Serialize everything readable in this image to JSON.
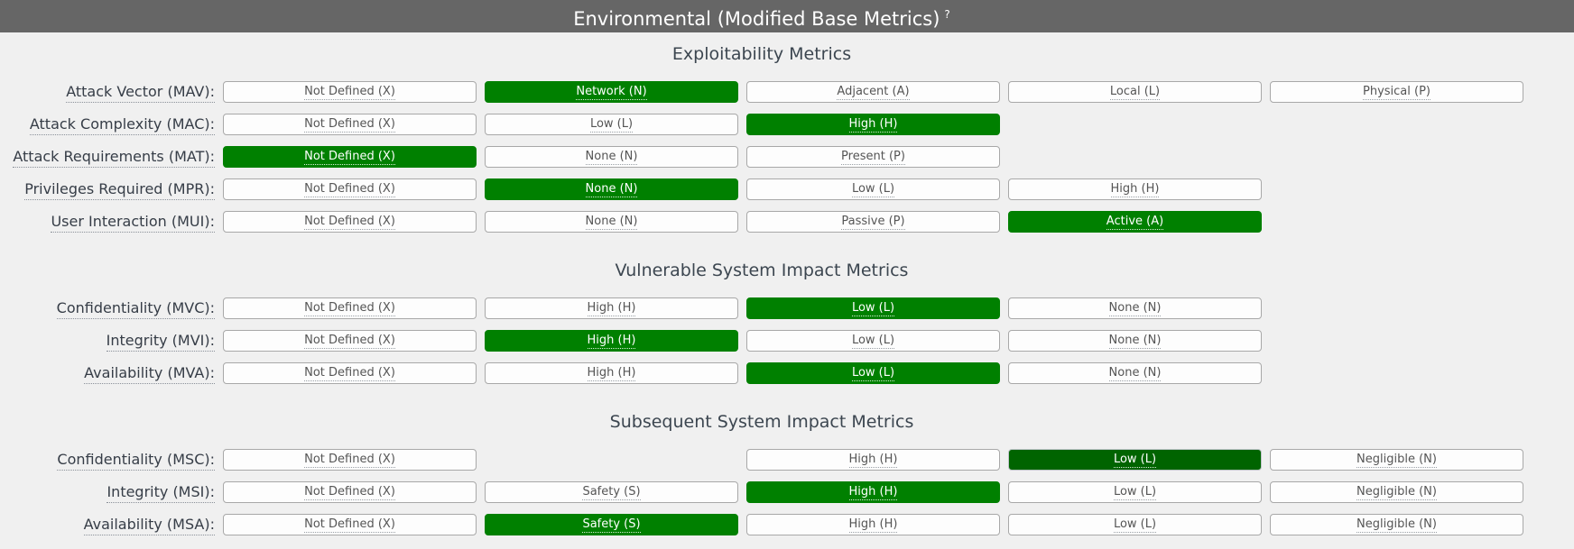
{
  "header": {
    "title": "Environmental (Modified Base Metrics)",
    "help": "?"
  },
  "colors": {
    "header_bg": "#666666",
    "header_text": "#ffffff",
    "page_bg": "#f0f0f0",
    "selected_bg": "#008000",
    "selected_active_bg": "#006400",
    "option_bg": "#fdfdfd",
    "option_border": "#a8a8a8",
    "option_text": "#555555",
    "heading_text": "#3c4650",
    "label_text": "#363d47"
  },
  "sections": [
    {
      "title": "Exploitability Metrics",
      "rows": [
        {
          "label": "Attack Vector (MAV):",
          "abbr": "MAV",
          "options": [
            {
              "text": "Not Defined (X)",
              "value": "X",
              "col": 1,
              "state": "default"
            },
            {
              "text": "Network (N)",
              "value": "N",
              "col": 2,
              "state": "selected"
            },
            {
              "text": "Adjacent (A)",
              "value": "A",
              "col": 3,
              "state": "default"
            },
            {
              "text": "Local (L)",
              "value": "L",
              "col": 4,
              "state": "default"
            },
            {
              "text": "Physical (P)",
              "value": "P",
              "col": 5,
              "state": "default"
            }
          ]
        },
        {
          "label": "Attack Complexity (MAC):",
          "abbr": "MAC",
          "options": [
            {
              "text": "Not Defined (X)",
              "value": "X",
              "col": 1,
              "state": "default"
            },
            {
              "text": "Low (L)",
              "value": "L",
              "col": 2,
              "state": "default"
            },
            {
              "text": "High (H)",
              "value": "H",
              "col": 3,
              "state": "selected"
            }
          ]
        },
        {
          "label": "Attack Requirements (MAT):",
          "abbr": "MAT",
          "options": [
            {
              "text": "Not Defined (X)",
              "value": "X",
              "col": 1,
              "state": "selected"
            },
            {
              "text": "None (N)",
              "value": "N",
              "col": 2,
              "state": "default"
            },
            {
              "text": "Present (P)",
              "value": "P",
              "col": 3,
              "state": "default"
            }
          ]
        },
        {
          "label": "Privileges Required (MPR):",
          "abbr": "MPR",
          "options": [
            {
              "text": "Not Defined (X)",
              "value": "X",
              "col": 1,
              "state": "default"
            },
            {
              "text": "None (N)",
              "value": "N",
              "col": 2,
              "state": "selected"
            },
            {
              "text": "Low (L)",
              "value": "L",
              "col": 3,
              "state": "default"
            },
            {
              "text": "High (H)",
              "value": "H",
              "col": 4,
              "state": "default"
            }
          ]
        },
        {
          "label": "User Interaction (MUI):",
          "abbr": "MUI",
          "options": [
            {
              "text": "Not Defined (X)",
              "value": "X",
              "col": 1,
              "state": "default"
            },
            {
              "text": "None (N)",
              "value": "N",
              "col": 2,
              "state": "default"
            },
            {
              "text": "Passive (P)",
              "value": "P",
              "col": 3,
              "state": "default"
            },
            {
              "text": "Active (A)",
              "value": "A",
              "col": 4,
              "state": "selected"
            }
          ]
        }
      ]
    },
    {
      "title": "Vulnerable System Impact Metrics",
      "rows": [
        {
          "label": "Confidentiality (MVC):",
          "abbr": "MVC",
          "options": [
            {
              "text": "Not Defined (X)",
              "value": "X",
              "col": 1,
              "state": "default"
            },
            {
              "text": "High (H)",
              "value": "H",
              "col": 2,
              "state": "default"
            },
            {
              "text": "Low (L)",
              "value": "L",
              "col": 3,
              "state": "selected"
            },
            {
              "text": "None (N)",
              "value": "N",
              "col": 4,
              "state": "default"
            }
          ]
        },
        {
          "label": "Integrity (MVI):",
          "abbr": "MVI",
          "options": [
            {
              "text": "Not Defined (X)",
              "value": "X",
              "col": 1,
              "state": "default"
            },
            {
              "text": "High (H)",
              "value": "H",
              "col": 2,
              "state": "selected"
            },
            {
              "text": "Low (L)",
              "value": "L",
              "col": 3,
              "state": "default"
            },
            {
              "text": "None (N)",
              "value": "N",
              "col": 4,
              "state": "default"
            }
          ]
        },
        {
          "label": "Availability (MVA):",
          "abbr": "MVA",
          "options": [
            {
              "text": "Not Defined (X)",
              "value": "X",
              "col": 1,
              "state": "default"
            },
            {
              "text": "High (H)",
              "value": "H",
              "col": 2,
              "state": "default"
            },
            {
              "text": "Low (L)",
              "value": "L",
              "col": 3,
              "state": "selected"
            },
            {
              "text": "None (N)",
              "value": "N",
              "col": 4,
              "state": "default"
            }
          ]
        }
      ]
    },
    {
      "title": "Subsequent System Impact Metrics",
      "rows": [
        {
          "label": "Confidentiality (MSC):",
          "abbr": "MSC",
          "options": [
            {
              "text": "Not Defined (X)",
              "value": "X",
              "col": 1,
              "state": "default"
            },
            {
              "text": "High (H)",
              "value": "H",
              "col": 3,
              "state": "default"
            },
            {
              "text": "Low (L)",
              "value": "L",
              "col": 4,
              "state": "selected-active"
            },
            {
              "text": "Negligible (N)",
              "value": "N",
              "col": 5,
              "state": "default"
            }
          ]
        },
        {
          "label": "Integrity (MSI):",
          "abbr": "MSI",
          "options": [
            {
              "text": "Not Defined (X)",
              "value": "X",
              "col": 1,
              "state": "default"
            },
            {
              "text": "Safety (S)",
              "value": "S",
              "col": 2,
              "state": "default"
            },
            {
              "text": "High (H)",
              "value": "H",
              "col": 3,
              "state": "selected"
            },
            {
              "text": "Low (L)",
              "value": "L",
              "col": 4,
              "state": "default"
            },
            {
              "text": "Negligible (N)",
              "value": "N",
              "col": 5,
              "state": "default"
            }
          ]
        },
        {
          "label": "Availability (MSA):",
          "abbr": "MSA",
          "options": [
            {
              "text": "Not Defined (X)",
              "value": "X",
              "col": 1,
              "state": "default"
            },
            {
              "text": "Safety (S)",
              "value": "S",
              "col": 2,
              "state": "selected"
            },
            {
              "text": "High (H)",
              "value": "H",
              "col": 3,
              "state": "default"
            },
            {
              "text": "Low (L)",
              "value": "L",
              "col": 4,
              "state": "default"
            },
            {
              "text": "Negligible (N)",
              "value": "N",
              "col": 5,
              "state": "default"
            }
          ]
        }
      ]
    }
  ]
}
